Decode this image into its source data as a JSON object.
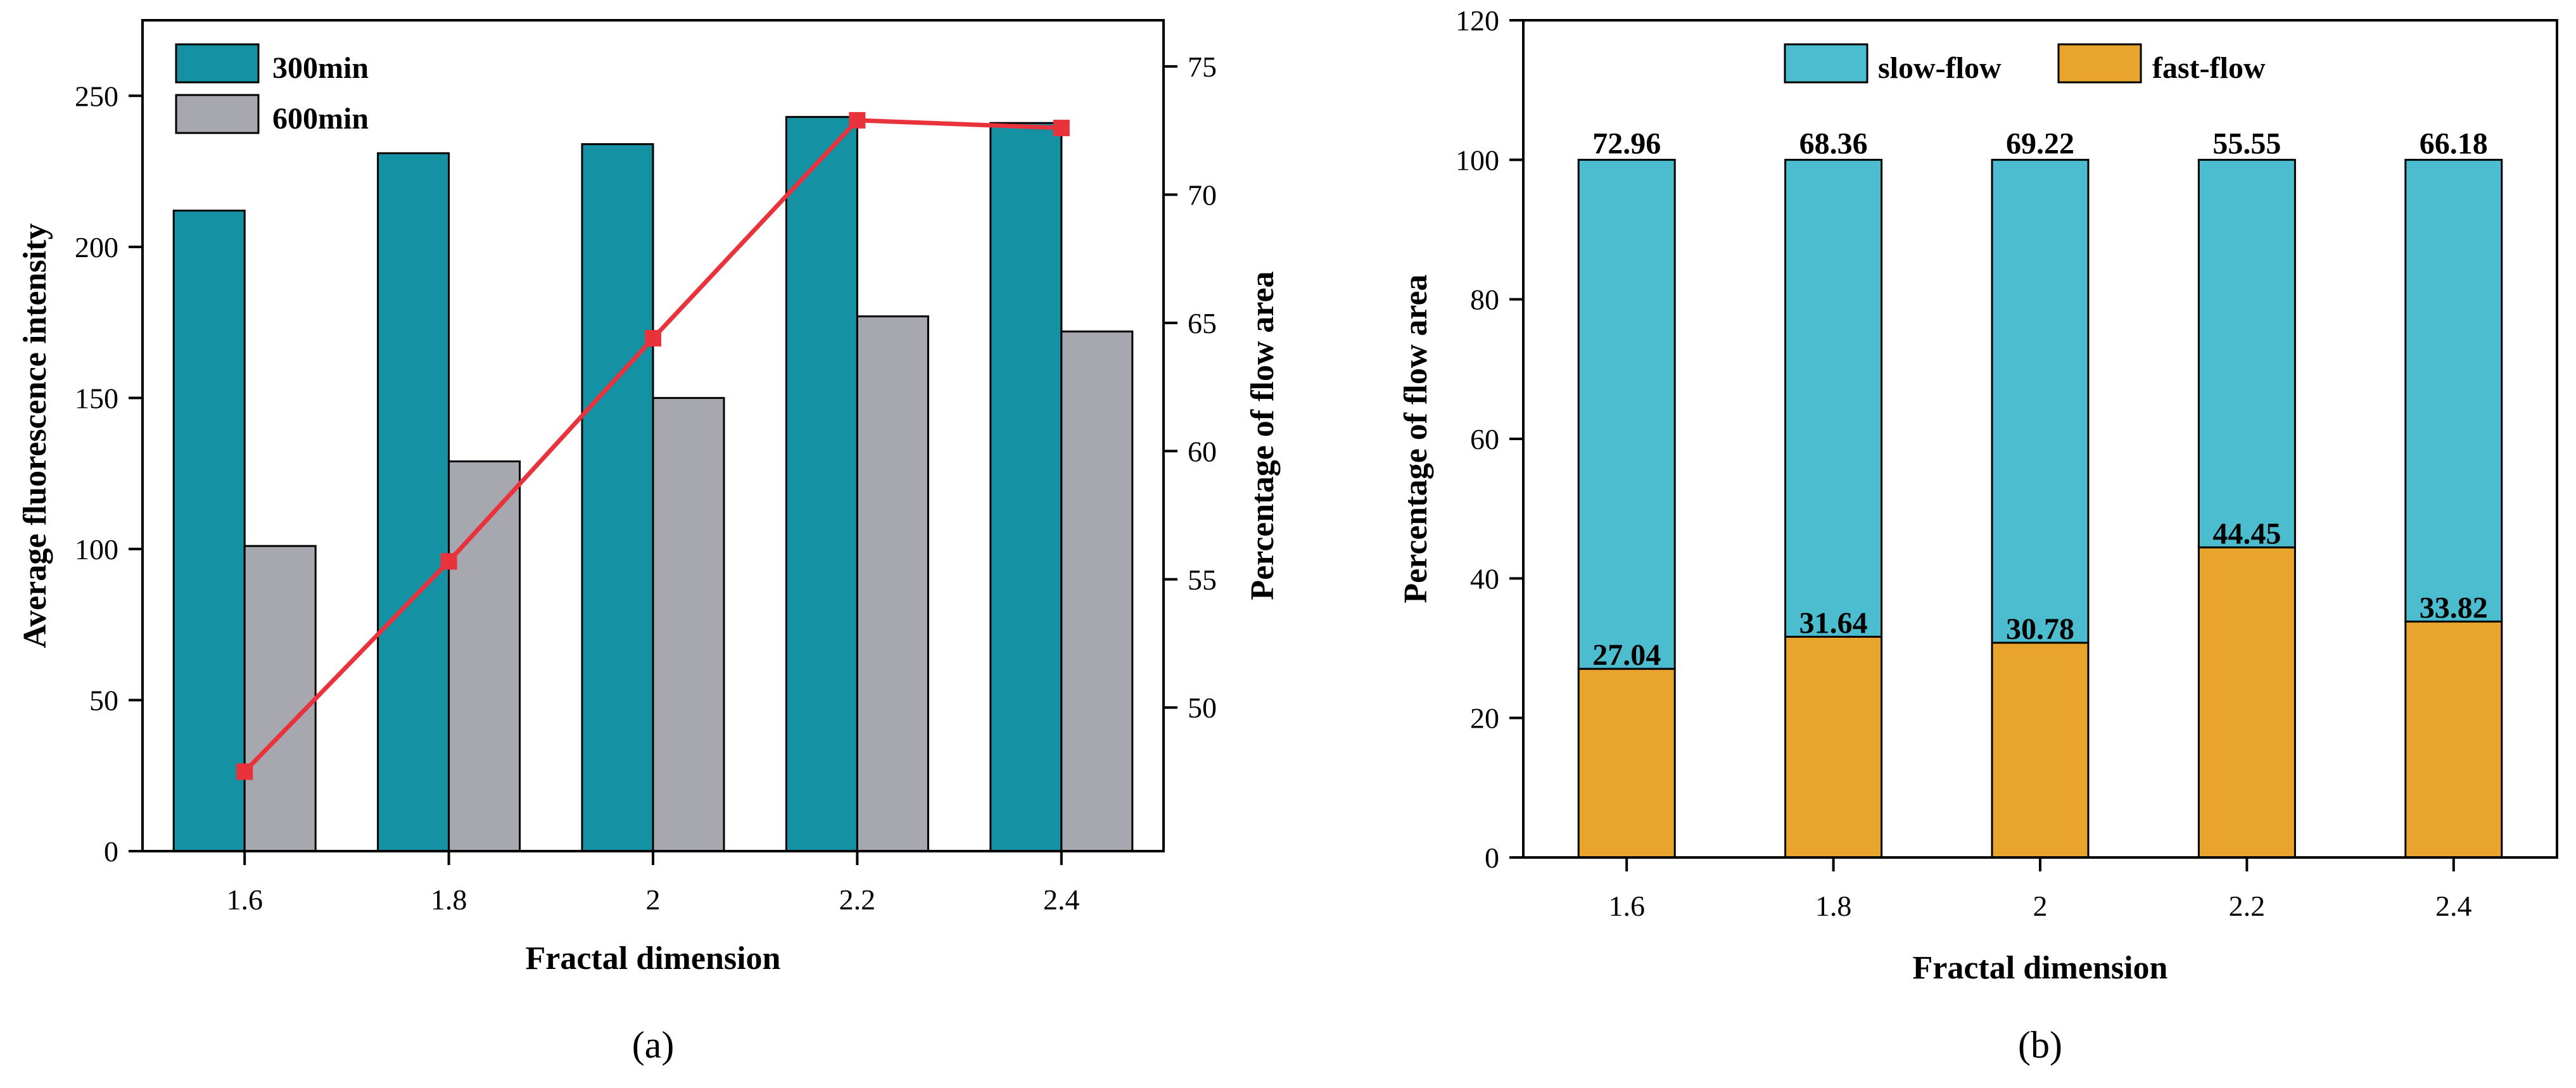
{
  "panels": [
    {
      "id": "a",
      "panel_label": "(a)",
      "xlabel": "Fractal dimension",
      "ylabel_left": "Average fluorescence intensity",
      "ylabel_right": "Percentage of flow area",
      "categories": [
        "1.6",
        "1.8",
        "2",
        "2.2",
        "2.4"
      ],
      "legend": [
        "300min",
        "600min"
      ]
    },
    {
      "id": "b",
      "panel_label": "(b)",
      "xlabel": "Fractal dimension",
      "ylabel": "Percentage of flow area",
      "categories": [
        "1.6",
        "1.8",
        "2",
        "2.2",
        "2.4"
      ],
      "legend": [
        "slow-flow",
        "fast-flow"
      ]
    }
  ],
  "colors": {
    "teal": "#1492A4",
    "gray": "#A7A7B0",
    "red": "#E8333D",
    "slow": "#4CBCCF",
    "fast": "#E8A42C"
  },
  "chart_data": [
    {
      "type": "bar+line",
      "title": "",
      "xlabel": "Fractal dimension",
      "ylabel": "Average fluorescence intensity",
      "y2label": "Percentage of flow area",
      "categories": [
        "1.6",
        "1.8",
        "2",
        "2.2",
        "2.4"
      ],
      "ylim": [
        0,
        275
      ],
      "yticks": [
        0,
        50,
        100,
        150,
        200,
        250
      ],
      "y2lim": [
        44.4,
        76.8
      ],
      "y2ticks": [
        50,
        55,
        60,
        65,
        70,
        75
      ],
      "series": [
        {
          "name": "300min",
          "kind": "bar",
          "axis": "left",
          "values": [
            212,
            231,
            234,
            243,
            241
          ]
        },
        {
          "name": "600min",
          "kind": "bar",
          "axis": "left",
          "values": [
            101,
            129,
            150,
            177,
            172
          ]
        },
        {
          "name": "Percentage of flow area",
          "kind": "line",
          "axis": "right",
          "values": [
            47.5,
            55.7,
            64.4,
            72.9,
            72.6
          ]
        }
      ],
      "legend_position": "top-left"
    },
    {
      "type": "stacked-bar",
      "title": "",
      "xlabel": "Fractal dimension",
      "ylabel": "Percentage of flow area",
      "categories": [
        "1.6",
        "1.8",
        "2",
        "2.2",
        "2.4"
      ],
      "ylim": [
        0,
        120
      ],
      "yticks": [
        0,
        20,
        40,
        60,
        80,
        100,
        120
      ],
      "series": [
        {
          "name": "fast-flow",
          "values": [
            27.04,
            31.64,
            30.78,
            44.45,
            33.82
          ]
        },
        {
          "name": "slow-flow",
          "values": [
            72.96,
            68.36,
            69.22,
            55.55,
            66.18
          ]
        }
      ],
      "data_labels": {
        "fast-flow": [
          "27.04",
          "31.64",
          "30.78",
          "44.45",
          "33.82"
        ],
        "slow-flow": [
          "72.96",
          "68.36",
          "69.22",
          "55.55",
          "66.18"
        ]
      },
      "legend_position": "top-center"
    }
  ]
}
